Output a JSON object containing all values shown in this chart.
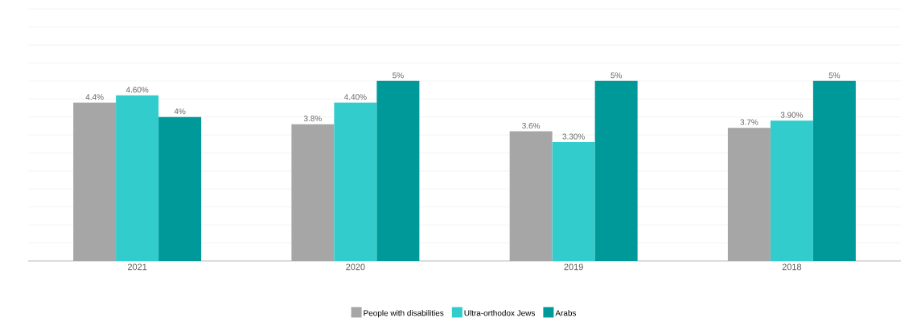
{
  "chart_data": {
    "type": "bar",
    "categories": [
      "2021",
      "2020",
      "2019",
      "2018"
    ],
    "series": [
      {
        "name": "People with disabilities",
        "color": "#a6a6a6",
        "values": [
          4.4,
          3.8,
          3.6,
          3.7
        ],
        "value_labels": [
          "4.4%",
          "3.8%",
          "3.6%",
          "3.7%"
        ]
      },
      {
        "name": "Ultra-orthodox Jews",
        "color": "#33cccc",
        "values": [
          4.6,
          4.4,
          3.3,
          3.9
        ],
        "value_labels": [
          "4.60%",
          "4.40%",
          "3.30%",
          "3.90%"
        ]
      },
      {
        "name": "Arabs",
        "color": "#009999",
        "values": [
          4,
          5,
          5,
          5
        ],
        "value_labels": [
          "4%",
          "5%",
          "5%",
          "5%"
        ]
      }
    ],
    "tick_labels": "x",
    "grid": "y",
    "legend": "bottom"
  }
}
